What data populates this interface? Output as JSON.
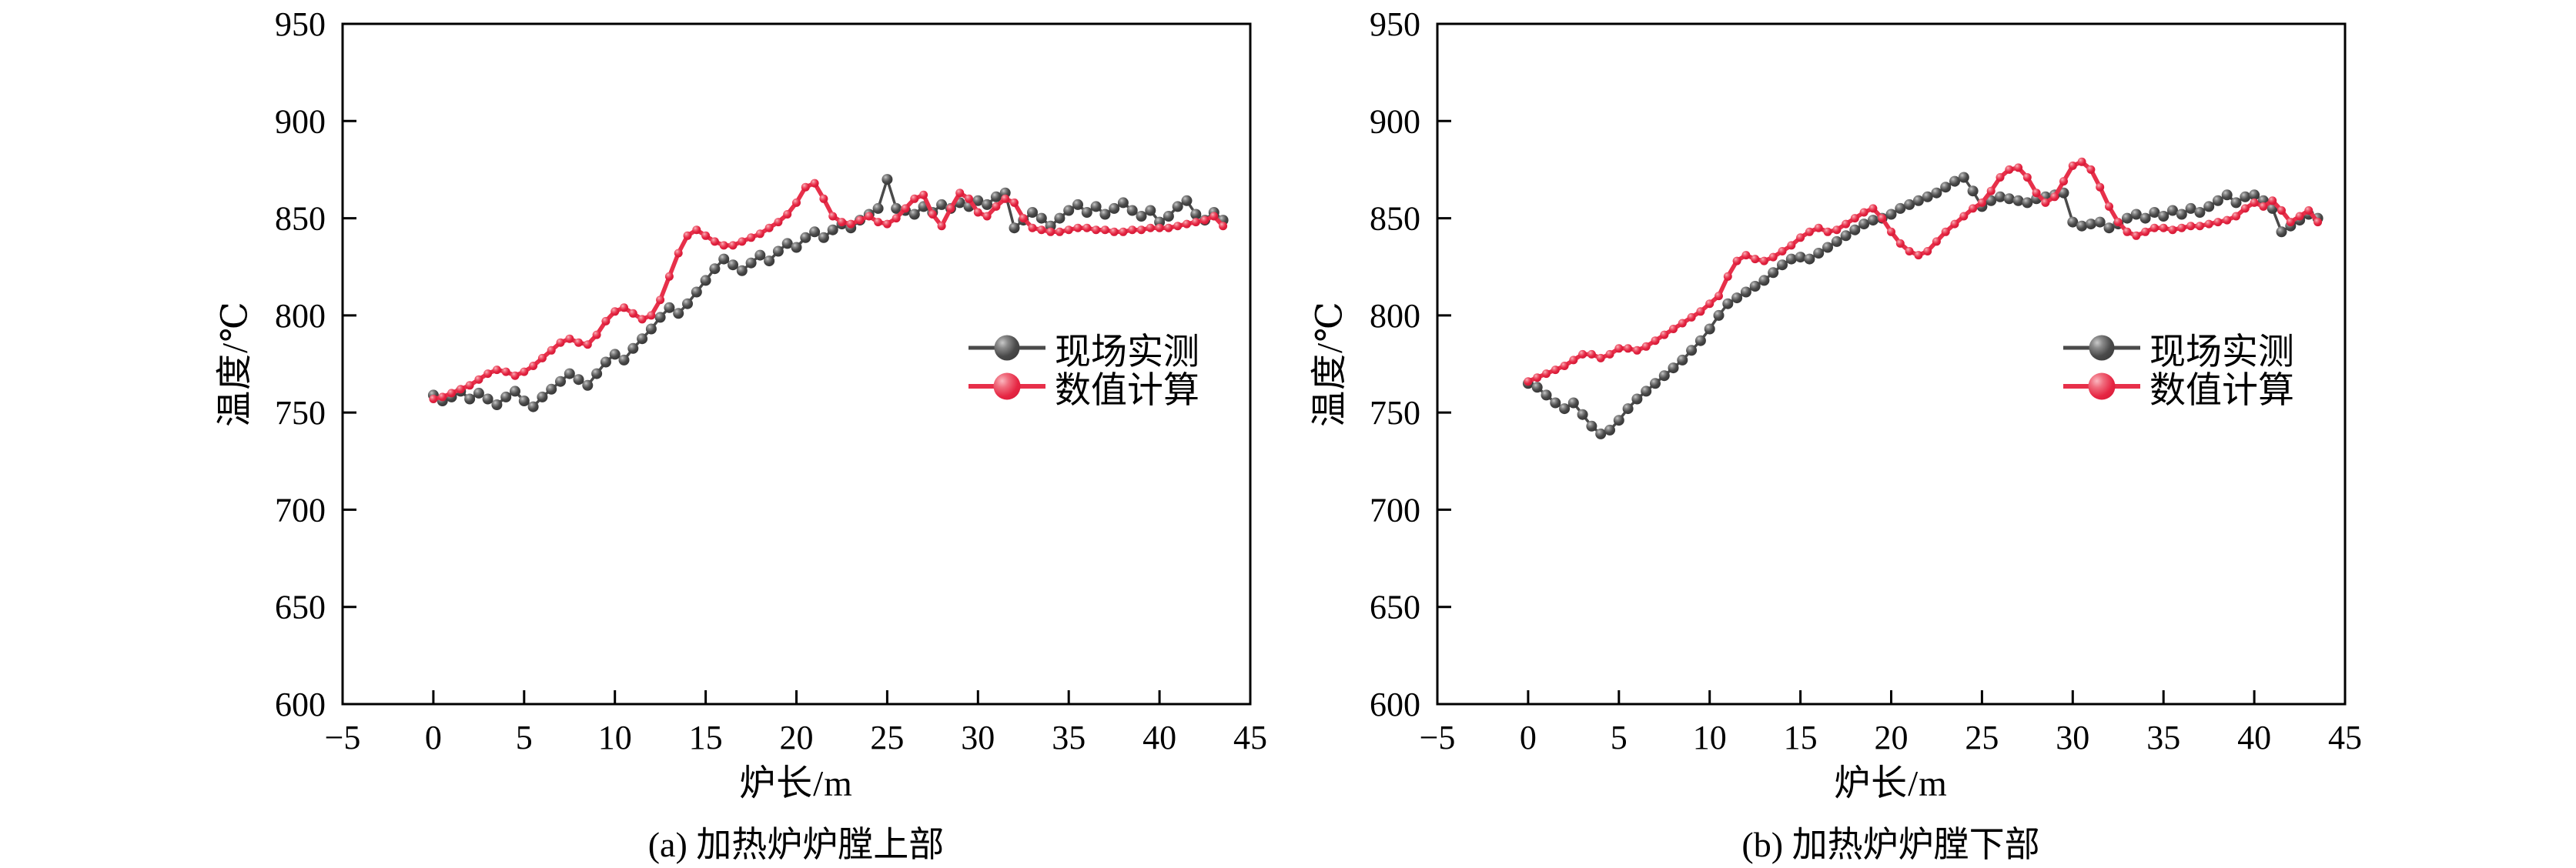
{
  "figure": {
    "background": "#ffffff",
    "axis_color": "#000000",
    "panels": [
      {
        "id": "a",
        "caption": "(a) 加热炉炉膛上部",
        "xlabel": "炉长/m",
        "ylabel": "温度/℃"
      },
      {
        "id": "b",
        "caption": "(b) 加热炉炉膛下部",
        "xlabel": "炉长/m",
        "ylabel": "温度/℃"
      }
    ]
  },
  "chart_data": [
    {
      "type": "line",
      "panel": "a",
      "title": "(a) 加热炉炉膛上部",
      "xlabel": "炉长/m",
      "ylabel": "温度/℃",
      "xlim": [
        -5,
        45
      ],
      "ylim": [
        600,
        950
      ],
      "xticks": [
        -5,
        0,
        5,
        10,
        15,
        20,
        25,
        30,
        35,
        40,
        45
      ],
      "yticks": [
        600,
        650,
        700,
        750,
        800,
        850,
        900,
        950
      ],
      "grid": false,
      "legend_position": "inside-right-middle",
      "x_start": 0,
      "x_step": 0.5,
      "series": [
        {
          "name": "现场实测",
          "color": "#4a4a4a",
          "marker": "sphere",
          "marker_radius": 7,
          "line_width": 3.5,
          "values": [
            759,
            756,
            758,
            761,
            757,
            760,
            757,
            754,
            758,
            761,
            756,
            753,
            758,
            762,
            766,
            770,
            767,
            764,
            770,
            776,
            780,
            777,
            783,
            788,
            793,
            799,
            804,
            801,
            806,
            812,
            818,
            824,
            829,
            826,
            823,
            827,
            831,
            828,
            833,
            837,
            835,
            840,
            843,
            840,
            844,
            847,
            845,
            849,
            852,
            855,
            870,
            855,
            854,
            852,
            856,
            853,
            857,
            855,
            858,
            856,
            859,
            857,
            861,
            863,
            845,
            849,
            853,
            850,
            846,
            850,
            854,
            857,
            853,
            856,
            852,
            855,
            858,
            854,
            851,
            854,
            848,
            851,
            856,
            859,
            852,
            849,
            853,
            849
          ]
        },
        {
          "name": "数值计算",
          "color": "#e7304a",
          "marker": "sphere",
          "marker_radius": 5.5,
          "line_width": 5.5,
          "values": [
            757,
            758,
            760,
            762,
            764,
            767,
            770,
            772,
            771,
            769,
            771,
            774,
            778,
            782,
            786,
            788,
            786,
            785,
            790,
            797,
            802,
            804,
            801,
            798,
            800,
            808,
            820,
            832,
            841,
            844,
            841,
            838,
            836,
            836,
            838,
            840,
            842,
            845,
            848,
            852,
            858,
            866,
            868,
            860,
            851,
            848,
            847,
            849,
            851,
            848,
            847,
            850,
            855,
            860,
            862,
            852,
            846,
            855,
            863,
            860,
            853,
            851,
            856,
            860,
            858,
            850,
            845,
            844,
            843,
            843,
            844,
            845,
            845,
            844,
            844,
            843,
            843,
            844,
            844,
            845,
            845,
            845,
            846,
            847,
            848,
            849,
            851,
            846
          ]
        }
      ]
    },
    {
      "type": "line",
      "panel": "b",
      "title": "(b) 加热炉炉膛下部",
      "xlabel": "炉长/m",
      "ylabel": "温度/℃",
      "xlim": [
        -5,
        45
      ],
      "ylim": [
        600,
        950
      ],
      "xticks": [
        -5,
        0,
        5,
        10,
        15,
        20,
        25,
        30,
        35,
        40,
        45
      ],
      "yticks": [
        600,
        650,
        700,
        750,
        800,
        850,
        900,
        950
      ],
      "grid": false,
      "legend_position": "inside-right-middle",
      "x_start": 0,
      "x_step": 0.5,
      "series": [
        {
          "name": "现场实测",
          "color": "#4a4a4a",
          "marker": "sphere",
          "marker_radius": 7,
          "line_width": 3.5,
          "values": [
            765,
            763,
            759,
            755,
            752,
            755,
            749,
            743,
            739,
            741,
            746,
            752,
            757,
            761,
            765,
            769,
            773,
            777,
            782,
            787,
            793,
            800,
            806,
            809,
            812,
            815,
            818,
            822,
            826,
            829,
            830,
            829,
            832,
            835,
            838,
            841,
            844,
            847,
            849,
            850,
            852,
            855,
            857,
            859,
            861,
            863,
            866,
            869,
            871,
            864,
            856,
            859,
            861,
            860,
            859,
            858,
            860,
            861,
            862,
            863,
            848,
            846,
            847,
            848,
            845,
            847,
            850,
            852,
            850,
            853,
            851,
            854,
            852,
            855,
            853,
            856,
            859,
            862,
            858,
            861,
            862,
            859,
            855,
            843,
            846,
            849,
            852,
            850
          ]
        },
        {
          "name": "数值计算",
          "color": "#e7304a",
          "marker": "sphere",
          "marker_radius": 5.5,
          "line_width": 5.5,
          "values": [
            766,
            768,
            770,
            772,
            774,
            777,
            780,
            780,
            778,
            780,
            783,
            783,
            782,
            784,
            787,
            790,
            793,
            796,
            799,
            802,
            806,
            810,
            820,
            828,
            831,
            829,
            828,
            830,
            833,
            836,
            840,
            843,
            845,
            843,
            844,
            847,
            850,
            853,
            855,
            850,
            843,
            837,
            833,
            831,
            833,
            838,
            843,
            847,
            851,
            855,
            858,
            864,
            871,
            875,
            876,
            871,
            863,
            858,
            861,
            869,
            877,
            879,
            875,
            866,
            856,
            848,
            843,
            841,
            843,
            845,
            845,
            844,
            845,
            846,
            846,
            847,
            848,
            849,
            851,
            855,
            858,
            856,
            859,
            854,
            848,
            851,
            854,
            848
          ]
        }
      ]
    }
  ]
}
